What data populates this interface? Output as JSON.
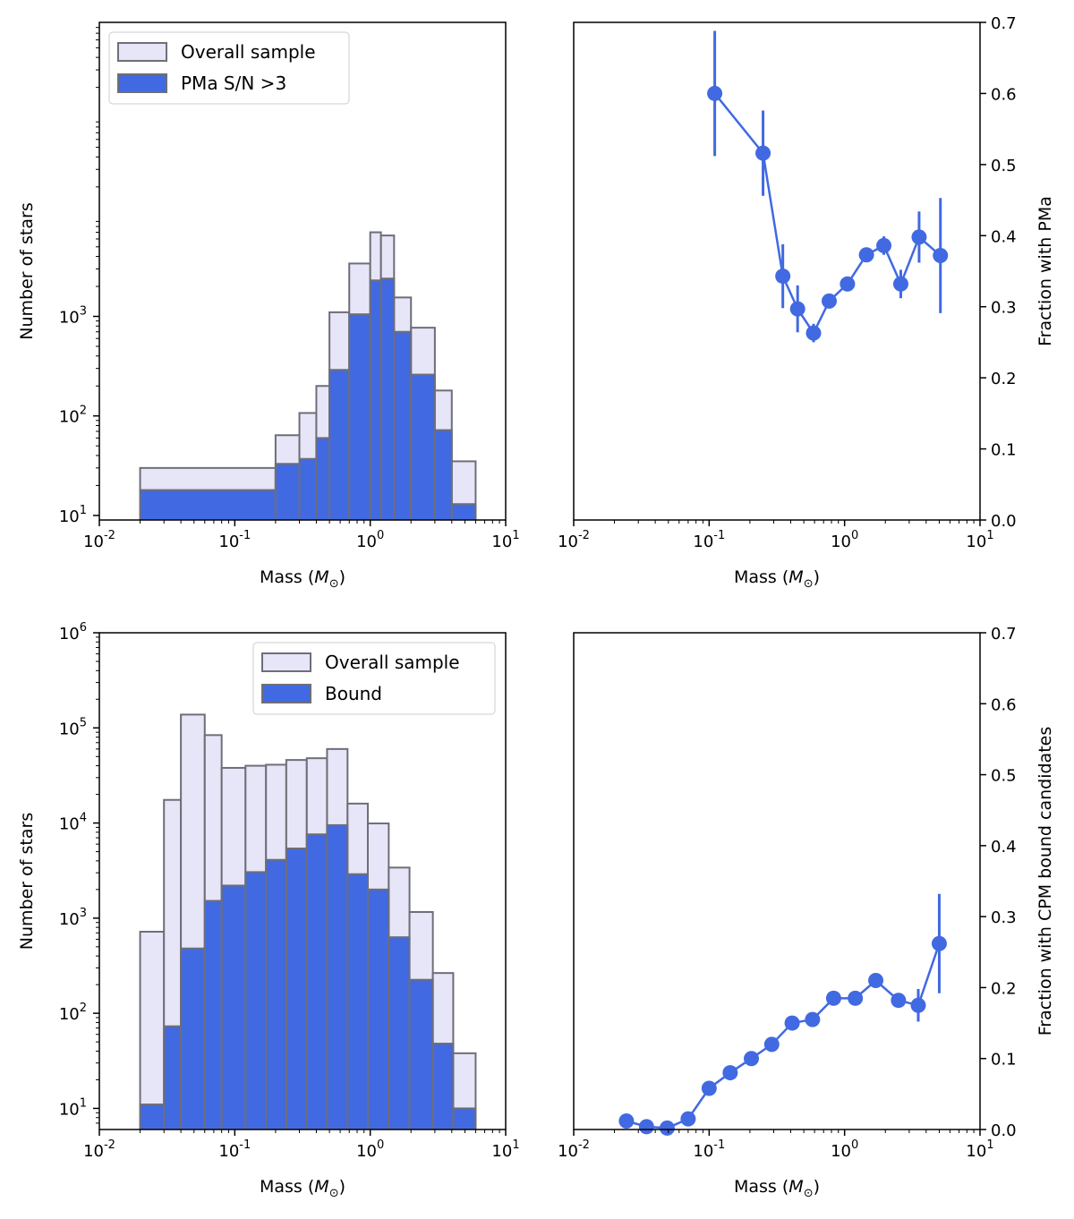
{
  "colors": {
    "overall_fill": "#e6e6f8",
    "bar_edge": "#6e6e78",
    "accent": "#4169e1"
  },
  "chart_data": [
    {
      "id": "hist_pma",
      "type": "bar",
      "xscale": "log",
      "yscale": "log",
      "xlim": [
        0.01,
        10
      ],
      "ylim": [
        9,
        900000
      ],
      "xlabel": "Mass ($M_\\odot$)",
      "ylabel": "Number of stars",
      "yticks": [
        10,
        100,
        1000
      ],
      "legend": {
        "position": "top-left",
        "entries": [
          "Overall sample",
          "PMa S/N >3"
        ]
      },
      "bin_edges": [
        0.02,
        0.2,
        0.3,
        0.4,
        0.5,
        0.7,
        1.0,
        1.2,
        1.5,
        2.0,
        3.0,
        4.0,
        6.0
      ],
      "series": [
        {
          "name": "Overall sample",
          "values": [
            30,
            64,
            107,
            200,
            1100,
            3400,
            7000,
            6500,
            1550,
            770,
            180,
            35
          ]
        },
        {
          "name": "PMa S/N >3",
          "values": [
            18,
            33,
            37,
            60,
            290,
            1050,
            2300,
            2400,
            700,
            260,
            72,
            13
          ]
        }
      ]
    },
    {
      "id": "frac_pma",
      "type": "scatter",
      "xscale": "log",
      "xlim": [
        0.01,
        10
      ],
      "ylim": [
        0.0,
        0.7
      ],
      "xlabel": "Mass ($M_\\odot$)",
      "ylabel": "Fraction with PMa",
      "yticks": [
        0.0,
        0.1,
        0.2,
        0.3,
        0.4,
        0.5,
        0.6,
        0.7
      ],
      "x": [
        0.11,
        0.25,
        0.35,
        0.45,
        0.59,
        0.77,
        1.05,
        1.45,
        1.95,
        2.6,
        3.55,
        5.1
      ],
      "y": [
        0.6,
        0.516,
        0.343,
        0.297,
        0.263,
        0.308,
        0.332,
        0.373,
        0.386,
        0.332,
        0.398,
        0.372
      ],
      "yerr": [
        0.088,
        0.06,
        0.045,
        0.033,
        0.013,
        0.008,
        0.008,
        0.01,
        0.013,
        0.02,
        0.036,
        0.081
      ]
    },
    {
      "id": "hist_cpm",
      "type": "bar",
      "xscale": "log",
      "yscale": "log",
      "xlim": [
        0.01,
        10
      ],
      "ylim": [
        6,
        1000000
      ],
      "xlabel": "Mass ($M_\\odot$)",
      "ylabel": "Number of stars",
      "yticks": [
        10,
        100,
        1000,
        10000,
        100000,
        1000000
      ],
      "legend": {
        "position": "top-right",
        "entries": [
          "Overall sample",
          "Bound"
        ]
      },
      "bin_edges": [
        0.02,
        0.03,
        0.04,
        0.06,
        0.08,
        0.12,
        0.17,
        0.24,
        0.34,
        0.48,
        0.68,
        0.96,
        1.37,
        1.95,
        2.9,
        4.1,
        6.0
      ],
      "series": [
        {
          "name": "Overall sample",
          "values": [
            720,
            17500,
            138000,
            84000,
            38000,
            40000,
            41000,
            46000,
            48000,
            60000,
            16000,
            9900,
            3400,
            1160,
            265,
            38
          ]
        },
        {
          "name": "Bound",
          "values": [
            11,
            73,
            480,
            1520,
            2200,
            3050,
            4100,
            5400,
            7600,
            9500,
            2900,
            2000,
            630,
            225,
            48,
            10
          ]
        }
      ]
    },
    {
      "id": "frac_cpm",
      "type": "scatter",
      "xscale": "log",
      "xlim": [
        0.01,
        10
      ],
      "ylim": [
        0.0,
        0.7
      ],
      "xlabel": "Mass ($M_\\odot$)",
      "ylabel": "Fraction with CPM bound candidates",
      "yticks": [
        0.0,
        0.1,
        0.2,
        0.3,
        0.4,
        0.5,
        0.6,
        0.7
      ],
      "x": [
        0.0245,
        0.0345,
        0.049,
        0.07,
        0.1,
        0.143,
        0.205,
        0.29,
        0.41,
        0.58,
        0.83,
        1.2,
        1.7,
        2.5,
        3.5,
        5.0
      ],
      "y": [
        0.012,
        0.004,
        0.002,
        0.015,
        0.058,
        0.08,
        0.1,
        0.12,
        0.15,
        0.155,
        0.185,
        0.185,
        0.21,
        0.182,
        0.175,
        0.262
      ],
      "yerr": [
        0.0,
        0.0,
        0.0,
        0.0,
        0.0,
        0.0,
        0.0,
        0.0,
        0.0,
        0.0,
        0.0,
        0.0,
        0.0,
        0.0,
        0.023,
        0.07
      ]
    }
  ]
}
